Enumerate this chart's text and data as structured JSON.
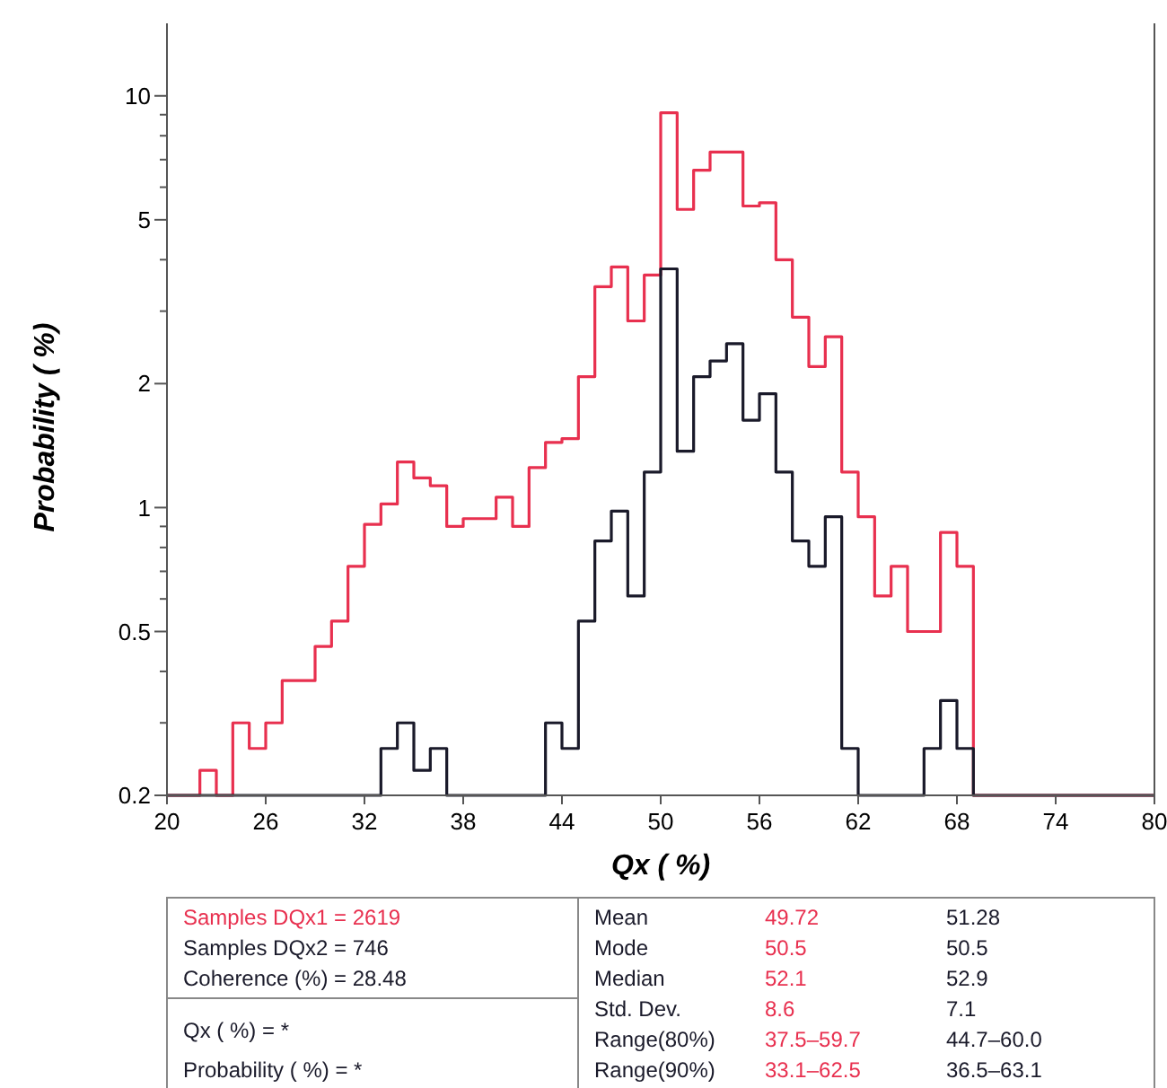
{
  "chart_data": {
    "type": "histogram",
    "xlabel": "Qx ( %)",
    "ylabel": "Probability ( %)",
    "bins": [
      20,
      21,
      22,
      23,
      24,
      25,
      26,
      27,
      28,
      29,
      30,
      31,
      32,
      33,
      34,
      35,
      36,
      37,
      38,
      39,
      40,
      41,
      42,
      43,
      44,
      45,
      46,
      47,
      48,
      49,
      50,
      51,
      52,
      53,
      54,
      55,
      56,
      57,
      58,
      59,
      60,
      61,
      62,
      63,
      64,
      65,
      66,
      67,
      68,
      69,
      70,
      71,
      72,
      73,
      74,
      75,
      76,
      77,
      78,
      79,
      80
    ],
    "series": [
      {
        "color": "#e8304f",
        "values": [
          0.2,
          0.2,
          0.23,
          0.2,
          0.3,
          0.26,
          0.3,
          0.38,
          0.38,
          0.46,
          0.53,
          0.72,
          0.91,
          1.02,
          1.29,
          1.18,
          1.13,
          0.9,
          0.94,
          0.94,
          1.06,
          0.9,
          1.25,
          1.44,
          1.47,
          2.08,
          3.44,
          3.84,
          2.84,
          3.67,
          9.1,
          5.3,
          6.6,
          7.3,
          7.3,
          5.4,
          5.5,
          4.0,
          2.9,
          2.2,
          2.6,
          1.22,
          0.95,
          0.61,
          0.72,
          0.5,
          0.5,
          0.87,
          0.72,
          0.2,
          0.2,
          0.2,
          0.2,
          0.2,
          0.2,
          0.2,
          0.2,
          0.2,
          0.2,
          0.2
        ]
      },
      {
        "color": "#1a1a2a",
        "values": [
          0.2,
          0.2,
          0.2,
          0.2,
          0.2,
          0.2,
          0.2,
          0.2,
          0.2,
          0.2,
          0.2,
          0.2,
          0.2,
          0.26,
          0.3,
          0.23,
          0.26,
          0.2,
          0.2,
          0.2,
          0.2,
          0.2,
          0.2,
          0.3,
          0.26,
          0.53,
          0.83,
          0.98,
          0.61,
          1.22,
          3.8,
          1.37,
          2.08,
          2.27,
          2.5,
          1.63,
          1.89,
          1.22,
          0.83,
          0.72,
          0.95,
          0.26,
          0.2,
          0.2,
          0.2,
          0.2,
          0.26,
          0.34,
          0.26,
          0.2,
          0.2,
          0.2,
          0.2,
          0.2,
          0.2,
          0.2,
          0.2,
          0.2,
          0.2,
          0.2
        ]
      }
    ],
    "xlim": [
      20,
      80
    ],
    "xticks": [
      20,
      26,
      32,
      38,
      44,
      50,
      56,
      62,
      68,
      74,
      80
    ],
    "ylim": [
      0.2,
      15
    ],
    "log": true,
    "yticks": [
      0.2,
      {
        "value": 0.3,
        "label": null
      },
      {
        "value": 0.4,
        "label": null
      },
      0.5,
      {
        "value": 0.6,
        "label": null
      },
      {
        "value": 0.7,
        "label": null
      },
      {
        "value": 0.8,
        "label": null
      },
      {
        "value": 0.9,
        "label": null
      },
      1,
      2,
      {
        "value": 3,
        "label": null
      },
      {
        "value": 4,
        "label": null
      },
      5,
      {
        "value": 6,
        "label": null
      },
      {
        "value": 7,
        "label": null
      },
      {
        "value": 8,
        "label": null
      },
      {
        "value": 9,
        "label": null
      },
      10
    ],
    "grid": false,
    "annotations": [
      "Samples DQx1 = 2619",
      "Samples DQx2 = 746",
      "Coherence (%) = 28.48",
      "Qx ( %) = *",
      "Probability ( %) = *",
      "Mean",
      "49.72",
      "51.28",
      "Mode",
      "50.5",
      "50.5",
      "Median",
      "52.1",
      "52.9",
      "Std. Dev.",
      "8.6",
      "7.1",
      "Range(80%)",
      "37.5–59.7",
      "44.7–60.0",
      "Range(90%)",
      "33.1–62.5",
      "36.5–63.1"
    ]
  }
}
